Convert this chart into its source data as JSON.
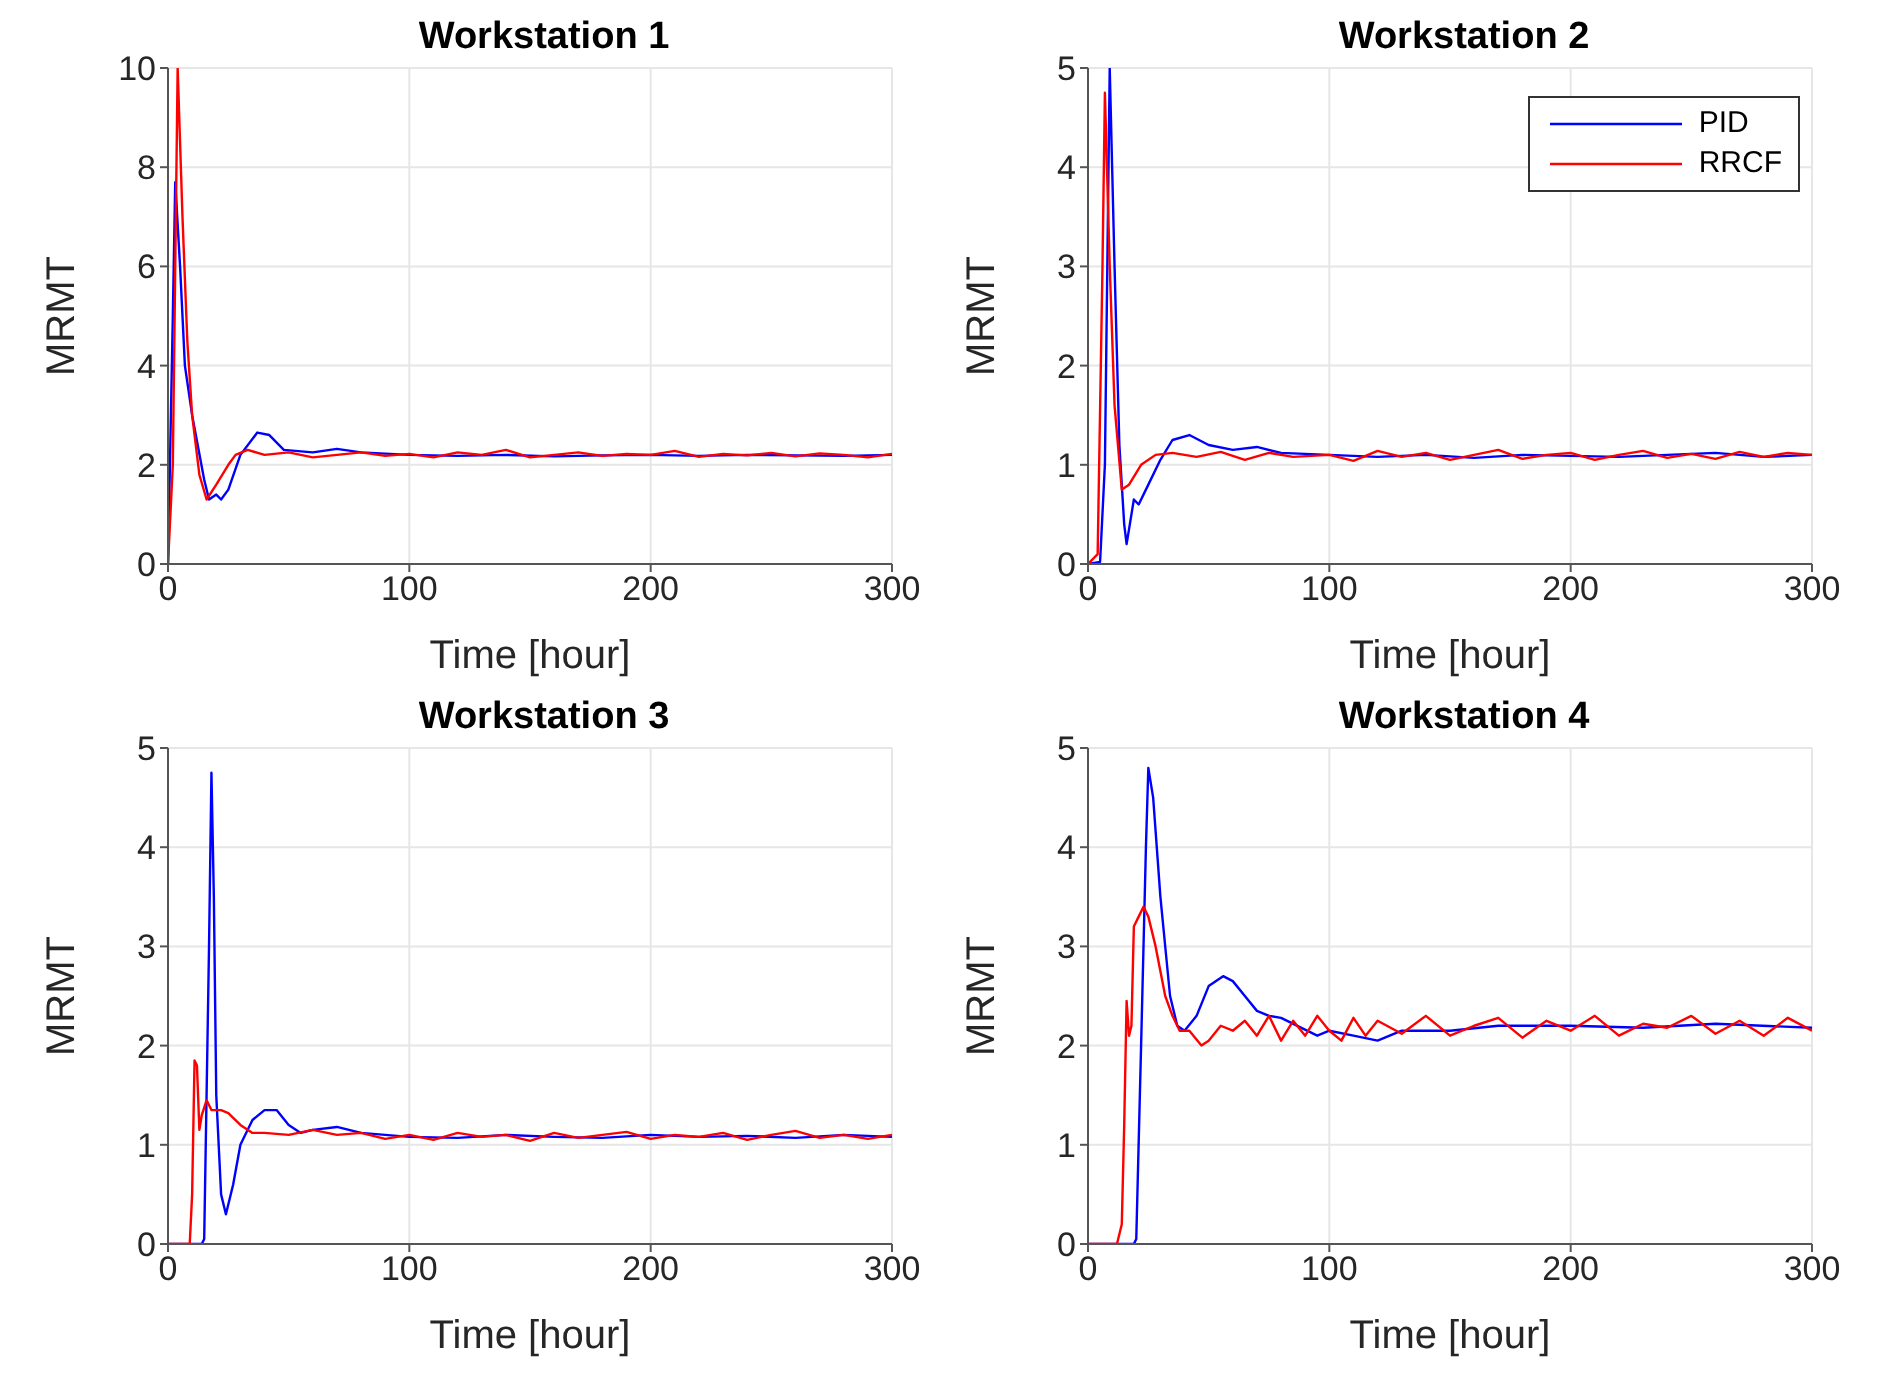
{
  "chart_data": [
    {
      "type": "line",
      "title": "Workstation 1",
      "xlabel": "Time [hour]",
      "ylabel": "MRMT",
      "xlim": [
        0,
        300
      ],
      "xticks": [
        0,
        100,
        200,
        300
      ],
      "ylim": [
        0,
        10
      ],
      "yticks": [
        0,
        2,
        4,
        6,
        8,
        10
      ],
      "grid": true,
      "legend": false,
      "marker": "none",
      "line_style": "solid",
      "series": [
        {
          "color": "#0000ff",
          "x": [
            0,
            2,
            3,
            5,
            7,
            10,
            15,
            17,
            20,
            22,
            25,
            30,
            37,
            42,
            48,
            60,
            70,
            80,
            100,
            120,
            140,
            160,
            180,
            200,
            220,
            240,
            260,
            280,
            300
          ],
          "values": [
            0,
            5,
            7.7,
            6,
            4,
            3,
            1.7,
            1.3,
            1.4,
            1.3,
            1.5,
            2.2,
            2.65,
            2.6,
            2.3,
            2.25,
            2.32,
            2.25,
            2.2,
            2.18,
            2.2,
            2.17,
            2.19,
            2.2,
            2.18,
            2.2,
            2.19,
            2.18,
            2.2
          ]
        },
        {
          "color": "#ff0000",
          "x": [
            0,
            2,
            4,
            6,
            8,
            10,
            13,
            16,
            20,
            25,
            28,
            33,
            40,
            50,
            60,
            70,
            80,
            90,
            100,
            110,
            120,
            130,
            140,
            150,
            160,
            170,
            180,
            190,
            200,
            210,
            220,
            230,
            240,
            250,
            260,
            270,
            280,
            290,
            300
          ],
          "values": [
            0,
            2,
            10,
            7,
            4.5,
            3,
            1.8,
            1.3,
            1.6,
            2,
            2.2,
            2.3,
            2.2,
            2.25,
            2.15,
            2.2,
            2.25,
            2.18,
            2.22,
            2.15,
            2.25,
            2.2,
            2.3,
            2.15,
            2.2,
            2.25,
            2.18,
            2.22,
            2.2,
            2.28,
            2.16,
            2.22,
            2.19,
            2.24,
            2.17,
            2.23,
            2.2,
            2.15,
            2.22
          ]
        }
      ]
    },
    {
      "type": "line",
      "title": "Workstation 2",
      "xlabel": "Time [hour]",
      "ylabel": "MRMT",
      "xlim": [
        0,
        300
      ],
      "xticks": [
        0,
        100,
        200,
        300
      ],
      "ylim": [
        0,
        5
      ],
      "yticks": [
        0,
        1,
        2,
        3,
        4,
        5
      ],
      "grid": true,
      "legend": "top right",
      "marker": "none",
      "line_style": "solid",
      "series": [
        {
          "name": "PID",
          "color": "#0000ff",
          "x": [
            0,
            5,
            7,
            9,
            11,
            13,
            15,
            16,
            19,
            21,
            25,
            30,
            35,
            42,
            50,
            60,
            70,
            80,
            100,
            120,
            140,
            160,
            180,
            200,
            220,
            240,
            260,
            280,
            300
          ],
          "values": [
            0,
            0.02,
            1,
            5,
            3,
            1.2,
            0.4,
            0.2,
            0.65,
            0.6,
            0.8,
            1.05,
            1.25,
            1.3,
            1.2,
            1.15,
            1.18,
            1.12,
            1.1,
            1.08,
            1.1,
            1.07,
            1.1,
            1.09,
            1.08,
            1.1,
            1.12,
            1.08,
            1.1
          ]
        },
        {
          "name": "RRCF",
          "color": "#ff0000",
          "x": [
            0,
            4,
            6,
            7,
            9,
            11,
            14,
            17,
            22,
            28,
            35,
            45,
            55,
            65,
            75,
            85,
            100,
            110,
            120,
            130,
            140,
            150,
            160,
            170,
            180,
            190,
            200,
            210,
            220,
            230,
            240,
            250,
            260,
            270,
            280,
            290,
            300
          ],
          "values": [
            0,
            0.1,
            3,
            4.75,
            3,
            1.6,
            0.75,
            0.8,
            1,
            1.1,
            1.12,
            1.08,
            1.13,
            1.05,
            1.12,
            1.08,
            1.1,
            1.04,
            1.14,
            1.08,
            1.12,
            1.05,
            1.1,
            1.15,
            1.06,
            1.1,
            1.12,
            1.05,
            1.1,
            1.14,
            1.07,
            1.11,
            1.06,
            1.13,
            1.08,
            1.12,
            1.1
          ]
        }
      ]
    },
    {
      "type": "line",
      "title": "Workstation 3",
      "xlabel": "Time [hour]",
      "ylabel": "MRMT",
      "xlim": [
        0,
        300
      ],
      "xticks": [
        0,
        100,
        200,
        300
      ],
      "ylim": [
        0,
        5
      ],
      "yticks": [
        0,
        1,
        2,
        3,
        4,
        5
      ],
      "grid": true,
      "legend": false,
      "marker": "none",
      "line_style": "solid",
      "series": [
        {
          "color": "#0000ff",
          "x": [
            0,
            14,
            15,
            17,
            18,
            19,
            20,
            22,
            24,
            27,
            30,
            35,
            40,
            45,
            50,
            55,
            60,
            70,
            80,
            100,
            120,
            140,
            160,
            180,
            200,
            220,
            240,
            260,
            280,
            300
          ],
          "values": [
            0,
            0,
            0.05,
            3,
            4.75,
            3.5,
            1.5,
            0.5,
            0.3,
            0.6,
            1,
            1.25,
            1.35,
            1.35,
            1.2,
            1.12,
            1.15,
            1.18,
            1.12,
            1.08,
            1.07,
            1.1,
            1.08,
            1.07,
            1.1,
            1.08,
            1.09,
            1.07,
            1.1,
            1.08
          ]
        },
        {
          "color": "#ff0000",
          "x": [
            0,
            9,
            10,
            11,
            12,
            13,
            14,
            16,
            18,
            22,
            25,
            30,
            35,
            40,
            50,
            60,
            70,
            80,
            90,
            100,
            110,
            120,
            130,
            140,
            150,
            160,
            170,
            180,
            190,
            200,
            210,
            220,
            230,
            240,
            250,
            260,
            270,
            280,
            290,
            300
          ],
          "values": [
            0,
            0,
            0.5,
            1.85,
            1.8,
            1.15,
            1.3,
            1.45,
            1.35,
            1.35,
            1.32,
            1.2,
            1.12,
            1.12,
            1.1,
            1.15,
            1.1,
            1.12,
            1.06,
            1.1,
            1.05,
            1.12,
            1.08,
            1.1,
            1.04,
            1.12,
            1.07,
            1.1,
            1.13,
            1.06,
            1.1,
            1.08,
            1.12,
            1.05,
            1.1,
            1.14,
            1.07,
            1.1,
            1.06,
            1.1
          ]
        }
      ]
    },
    {
      "type": "line",
      "title": "Workstation 4",
      "xlabel": "Time [hour]",
      "ylabel": "MRMT",
      "xlim": [
        0,
        300
      ],
      "xticks": [
        0,
        100,
        200,
        300
      ],
      "ylim": [
        0,
        5
      ],
      "yticks": [
        0,
        1,
        2,
        3,
        4,
        5
      ],
      "grid": true,
      "legend": false,
      "marker": "none",
      "line_style": "solid",
      "series": [
        {
          "color": "#0000ff",
          "x": [
            0,
            19,
            20,
            22,
            24,
            25,
            27,
            30,
            34,
            37,
            40,
            45,
            50,
            56,
            60,
            65,
            70,
            75,
            80,
            95,
            100,
            110,
            120,
            130,
            150,
            170,
            200,
            230,
            260,
            300
          ],
          "values": [
            0,
            0,
            0.05,
            2,
            4,
            4.8,
            4.5,
            3.5,
            2.5,
            2.2,
            2.15,
            2.3,
            2.6,
            2.7,
            2.65,
            2.5,
            2.35,
            2.3,
            2.28,
            2.1,
            2.15,
            2.1,
            2.05,
            2.15,
            2.15,
            2.2,
            2.2,
            2.18,
            2.22,
            2.18
          ]
        },
        {
          "color": "#ff0000",
          "x": [
            0,
            12,
            14,
            15,
            16,
            17,
            18,
            19,
            21,
            23,
            25,
            28,
            32,
            35,
            38,
            42,
            47,
            50,
            55,
            60,
            65,
            70,
            75,
            80,
            85,
            90,
            95,
            100,
            105,
            110,
            115,
            120,
            130,
            140,
            150,
            160,
            170,
            180,
            190,
            200,
            210,
            220,
            230,
            240,
            250,
            260,
            270,
            280,
            290,
            300
          ],
          "values": [
            0,
            0,
            0.2,
            1.2,
            2.45,
            2.1,
            2.2,
            3.2,
            3.3,
            3.4,
            3.3,
            3,
            2.5,
            2.3,
            2.15,
            2.15,
            2,
            2.05,
            2.2,
            2.15,
            2.25,
            2.1,
            2.3,
            2.05,
            2.25,
            2.1,
            2.3,
            2.15,
            2.05,
            2.28,
            2.1,
            2.25,
            2.12,
            2.3,
            2.1,
            2.2,
            2.28,
            2.08,
            2.25,
            2.15,
            2.3,
            2.1,
            2.22,
            2.18,
            2.3,
            2.12,
            2.25,
            2.1,
            2.28,
            2.15
          ]
        }
      ]
    }
  ]
}
